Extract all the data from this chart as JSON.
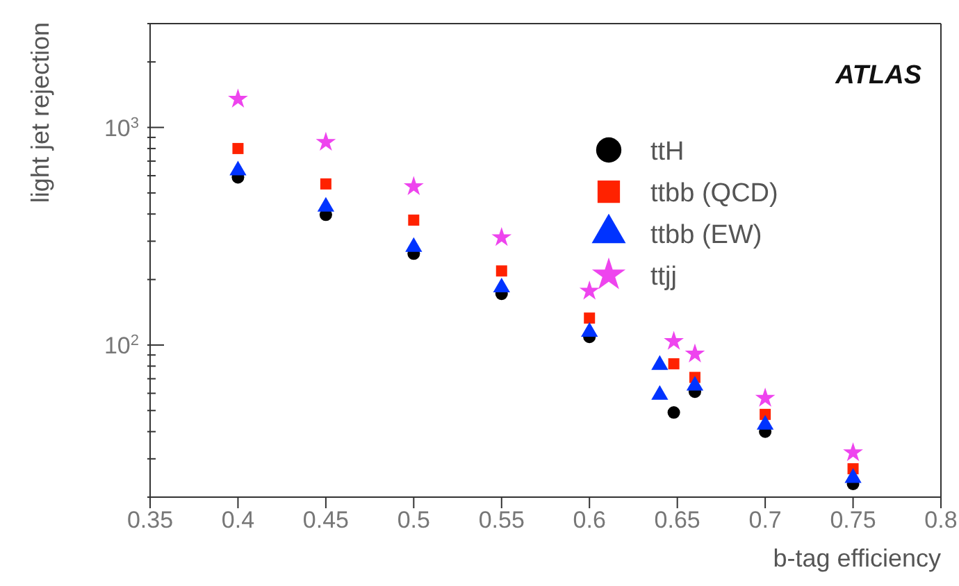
{
  "chart_data": {
    "type": "scatter",
    "xlabel": "b-tag efficiency",
    "ylabel": "light jet rejection",
    "log": "y",
    "xlim": [
      0.35,
      0.8
    ],
    "xticks": [
      0.35,
      0.4,
      0.45,
      0.5,
      0.55,
      0.6,
      0.65,
      0.7,
      0.75,
      0.8
    ],
    "ylim": [
      20,
      3000
    ],
    "yticks": [
      {
        "value": 20,
        "label": null
      },
      {
        "value": 30,
        "label": null
      },
      {
        "value": 40,
        "label": null
      },
      {
        "value": 50,
        "label": null
      },
      {
        "value": 60,
        "label": null
      },
      {
        "value": 70,
        "label": null
      },
      {
        "value": 80,
        "label": null
      },
      {
        "value": 90,
        "label": null
      },
      {
        "value": 100,
        "label": "10$^{2}$"
      },
      {
        "value": 200,
        "label": null
      },
      {
        "value": 300,
        "label": null
      },
      {
        "value": 400,
        "label": null
      },
      {
        "value": 500,
        "label": null
      },
      {
        "value": 600,
        "label": null
      },
      {
        "value": 700,
        "label": null
      },
      {
        "value": 800,
        "label": null
      },
      {
        "value": 900,
        "label": null
      },
      {
        "value": 1000,
        "label": "10$^{3}$"
      },
      {
        "value": 2000,
        "label": null
      },
      {
        "value": 3000,
        "label": null
      }
    ],
    "legend": "top right",
    "annotations": [
      "ATLAS"
    ],
    "series": [
      {
        "name": "ttH",
        "color": "#000000",
        "marker": "circle",
        "x": [
          0.4,
          0.45,
          0.5,
          0.55,
          0.6,
          0.648,
          0.66,
          0.7,
          0.75
        ],
        "values": [
          590,
          397,
          263,
          172,
          109,
          49,
          61,
          40,
          23
        ]
      },
      {
        "name": "ttbb (QCD)",
        "color": "#ff2200",
        "marker": "square",
        "x": [
          0.4,
          0.45,
          0.5,
          0.55,
          0.6,
          0.648,
          0.66,
          0.7,
          0.75
        ],
        "values": [
          800,
          550,
          375,
          219,
          133,
          82,
          71,
          48,
          27
        ]
      },
      {
        "name": "ttbb (EW)",
        "color": "#0033ff",
        "marker": "triangle",
        "x": [
          0.4,
          0.45,
          0.5,
          0.55,
          0.6,
          0.64,
          0.64,
          0.66,
          0.7,
          0.75
        ],
        "values": [
          634,
          432,
          282,
          184,
          115,
          81,
          59,
          65,
          43,
          24.5
        ]
      },
      {
        "name": "ttjj",
        "color": "#ee44ee",
        "marker": "star",
        "x": [
          0.4,
          0.45,
          0.5,
          0.55,
          0.6,
          0.648,
          0.66,
          0.7,
          0.75
        ],
        "values": [
          1350,
          855,
          535,
          312,
          177,
          104,
          91,
          57,
          32
        ]
      }
    ]
  }
}
